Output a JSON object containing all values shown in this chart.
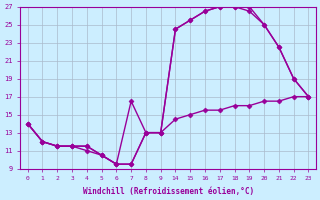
{
  "xlabel": "Windchill (Refroidissement éolien,°C)",
  "bg_color": "#cceeff",
  "line_color": "#990099",
  "grid_color": "#aabbcc",
  "ylim": [
    9,
    27
  ],
  "yticks": [
    9,
    11,
    13,
    15,
    17,
    19,
    21,
    23,
    25,
    27
  ],
  "hour_labels": [
    "0",
    "1",
    "2",
    "3",
    "4",
    "5",
    "6",
    "7",
    "8",
    "9",
    "14",
    "15",
    "16",
    "17",
    "18",
    "19",
    "20",
    "21",
    "22",
    "23"
  ],
  "line1_y": [
    14.0,
    12.0,
    11.5,
    11.5,
    11.5,
    10.5,
    9.5,
    16.5,
    13.0,
    13.0,
    24.5,
    25.5,
    26.5,
    27.0,
    27.0,
    26.5,
    25.0,
    22.5,
    19.0,
    17.0
  ],
  "line2_y": [
    14.0,
    12.0,
    11.5,
    11.5,
    11.5,
    10.5,
    9.5,
    9.5,
    13.0,
    13.0,
    24.5,
    25.5,
    26.5,
    27.0,
    27.0,
    27.0,
    25.0,
    22.5,
    19.0,
    17.0
  ],
  "line3_y": [
    14.0,
    12.0,
    11.5,
    11.5,
    11.0,
    10.5,
    9.5,
    9.5,
    13.0,
    13.0,
    14.5,
    15.0,
    15.5,
    15.5,
    16.0,
    16.0,
    16.5,
    16.5,
    17.0,
    17.0
  ],
  "marker": "D",
  "marker_size": 2.5,
  "linewidth": 1.0
}
